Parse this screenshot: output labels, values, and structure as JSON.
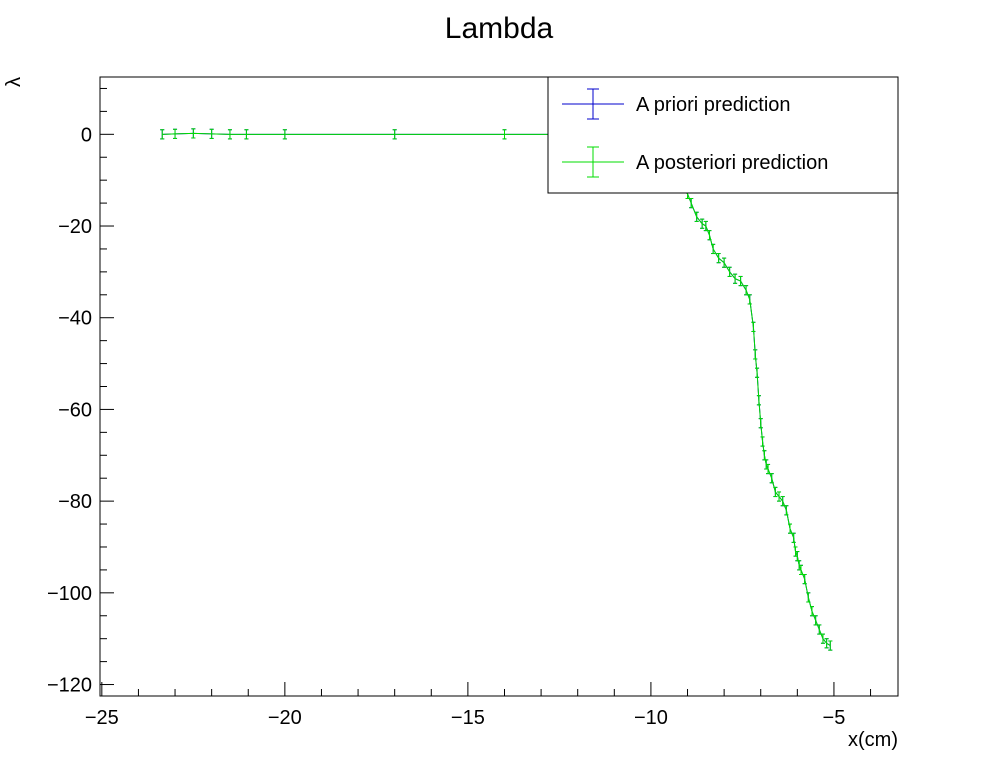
{
  "chart_data": {
    "type": "line",
    "title": "Lambda",
    "xlabel": "x(cm)",
    "ylabel": "λ",
    "xlim": [
      -25.05,
      -3.25
    ],
    "ylim": [
      -122.5,
      12.5
    ],
    "x_ticks": [
      -25,
      -20,
      -15,
      -10,
      -5
    ],
    "y_ticks": [
      0,
      -20,
      -40,
      -60,
      -80,
      -100,
      -120
    ],
    "x_tick_labels": [
      "−25",
      "−20",
      "−15",
      "−10",
      "−5"
    ],
    "y_tick_labels": [
      "0",
      "−20",
      "−40",
      "−60",
      "−80",
      "−100",
      "−120"
    ],
    "grid": false,
    "legend_position": "top-right",
    "series": [
      {
        "name": "A priori prediction",
        "color": "#0000cc",
        "x": [
          -23.35,
          -23.0,
          -22.5,
          -22.0,
          -21.5,
          -21.05,
          -20.0,
          -17.0,
          -14.0,
          -12.0,
          -10.4,
          -10.0,
          -9.6,
          -9.3,
          -9.2,
          -9.0,
          -8.9,
          -8.75,
          -8.6,
          -8.5,
          -8.4,
          -8.3,
          -8.15,
          -8.0,
          -7.85,
          -7.7,
          -7.55,
          -7.4,
          -7.3,
          -7.2,
          -7.15,
          -7.1,
          -7.05,
          -7.0,
          -6.95,
          -6.9,
          -6.85,
          -6.8,
          -6.7,
          -6.6,
          -6.5,
          -6.4,
          -6.3,
          -6.2,
          -6.1,
          -6.05,
          -6.0,
          -5.95,
          -5.9,
          -5.8,
          -5.7,
          -5.6,
          -5.5,
          -5.4,
          -5.3,
          -5.2,
          -5.1
        ],
        "y": [
          0,
          0.1,
          0.2,
          0.1,
          0,
          0,
          0,
          0,
          0,
          0,
          -1,
          -3,
          -6,
          -9,
          -11,
          -13,
          -15,
          -18,
          -19.5,
          -20,
          -22,
          -25,
          -27,
          -28,
          -30,
          -31.5,
          -32,
          -34,
          -36,
          -42,
          -48,
          -52,
          -58,
          -63,
          -67,
          -70,
          -72,
          -73,
          -75,
          -78,
          -79,
          -80,
          -82,
          -86,
          -88,
          -91,
          -92,
          -94,
          -95,
          -97,
          -101,
          -104,
          -106,
          -108,
          -110,
          -111,
          -111.5
        ],
        "error_y": 0.5
      },
      {
        "name": "A posteriori prediction",
        "color": "#00dd00",
        "x": [
          -23.35,
          -23.0,
          -22.5,
          -22.0,
          -21.5,
          -21.05,
          -20.0,
          -17.0,
          -14.0,
          -12.0,
          -10.4,
          -10.0,
          -9.6,
          -9.3,
          -9.2,
          -9.0,
          -8.9,
          -8.75,
          -8.6,
          -8.5,
          -8.4,
          -8.3,
          -8.15,
          -8.0,
          -7.85,
          -7.7,
          -7.55,
          -7.4,
          -7.3,
          -7.2,
          -7.15,
          -7.1,
          -7.05,
          -7.0,
          -6.95,
          -6.9,
          -6.85,
          -6.8,
          -6.7,
          -6.6,
          -6.5,
          -6.4,
          -6.3,
          -6.2,
          -6.1,
          -6.05,
          -6.0,
          -5.95,
          -5.9,
          -5.8,
          -5.7,
          -5.6,
          -5.5,
          -5.4,
          -5.3,
          -5.2,
          -5.1
        ],
        "y": [
          0,
          0.1,
          0.2,
          0.1,
          0,
          0,
          0,
          0,
          0,
          0,
          -1,
          -3,
          -6,
          -9,
          -11,
          -13,
          -15,
          -18,
          -19.5,
          -20,
          -22,
          -25,
          -27,
          -28,
          -30,
          -31.5,
          -32,
          -34,
          -36,
          -42,
          -48,
          -52,
          -58,
          -63,
          -67,
          -70,
          -72,
          -73,
          -75,
          -78,
          -79,
          -80,
          -82,
          -86,
          -88,
          -91,
          -92,
          -94,
          -95,
          -97,
          -101,
          -104,
          -106,
          -108,
          -110,
          -111,
          -111.5
        ],
        "error_y": 0.5
      }
    ]
  }
}
